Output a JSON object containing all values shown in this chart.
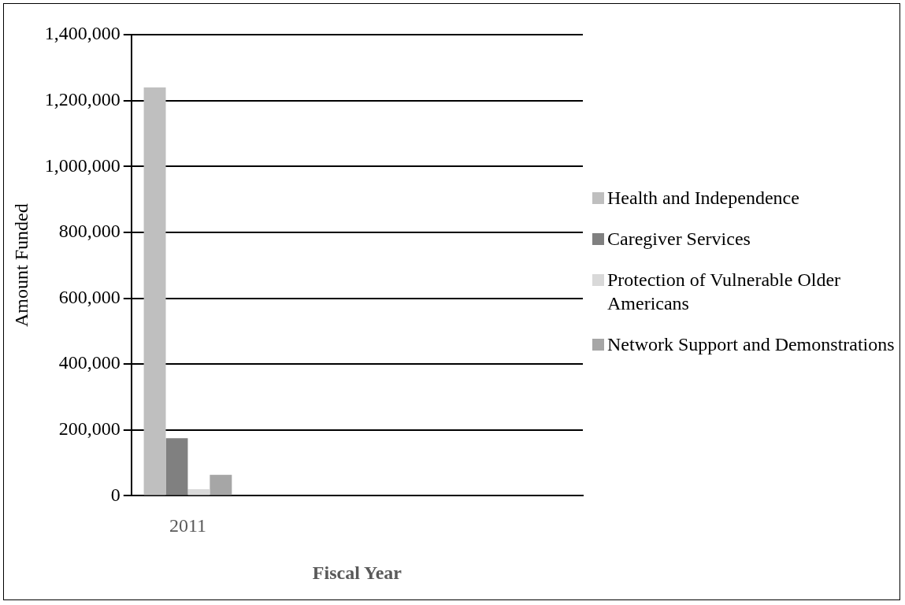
{
  "chart_data": {
    "type": "bar",
    "xlabel": "Fiscal Year",
    "ylabel": "Amount Funded",
    "categories": [
      "2011",
      null,
      null,
      null
    ],
    "series": [
      {
        "name": "Health and Independence",
        "color": "#bfbfbf",
        "values": [
          1240000,
          null,
          null,
          null
        ]
      },
      {
        "name": "Caregiver Services",
        "color": "#808080",
        "values": [
          175000,
          null,
          null,
          null
        ]
      },
      {
        "name": "Protection of Vulnerable Older Americans",
        "color": "#d9d9d9",
        "values": [
          20000,
          null,
          null,
          null
        ]
      },
      {
        "name": "Network Support and Demonstrations",
        "color": "#a6a6a6",
        "values": [
          64000,
          null,
          null,
          null
        ]
      }
    ],
    "ylim": [
      0,
      1400000
    ],
    "yticks": [
      0,
      {
        "value": 200000,
        "label": "200,000"
      },
      {
        "value": 400000,
        "label": "400,000"
      },
      {
        "value": 600000,
        "label": "600,000"
      },
      {
        "value": 800000,
        "label": "800,000"
      },
      {
        "value": 1000000,
        "label": "1,000,000"
      },
      {
        "value": 1200000,
        "label": "1,200,000"
      },
      {
        "value": 1400000,
        "label": "1,400,000"
      }
    ],
    "grid": "y",
    "legend": "right"
  }
}
